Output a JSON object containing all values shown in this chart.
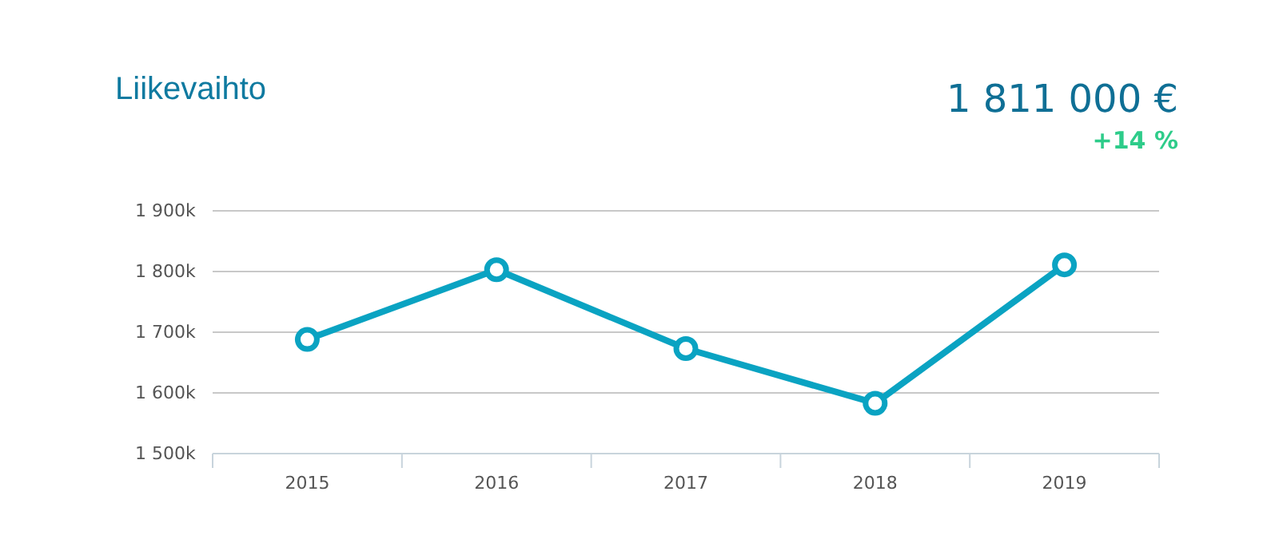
{
  "chart_data": {
    "type": "line",
    "title": "Liikevaihto",
    "annotations": [
      "1 811 000 €",
      "+14 %"
    ],
    "categories": [
      "2015",
      "2016",
      "2017",
      "2018",
      "2019"
    ],
    "series": [
      {
        "color": "#0aa3c2",
        "values": [
          1688,
          1803,
          1673,
          1583,
          1811
        ]
      }
    ],
    "ylim": [
      1500,
      1900
    ],
    "yticks": [
      {
        "value": 1500,
        "label": "1 500k"
      },
      {
        "value": 1600,
        "label": "1 600k"
      },
      {
        "value": 1700,
        "label": "1 700k"
      },
      {
        "value": 1800,
        "label": "1 800k"
      },
      {
        "value": 1900,
        "label": "1 900k"
      }
    ],
    "grid": "y",
    "marker": "circle",
    "line_style": "solid"
  }
}
